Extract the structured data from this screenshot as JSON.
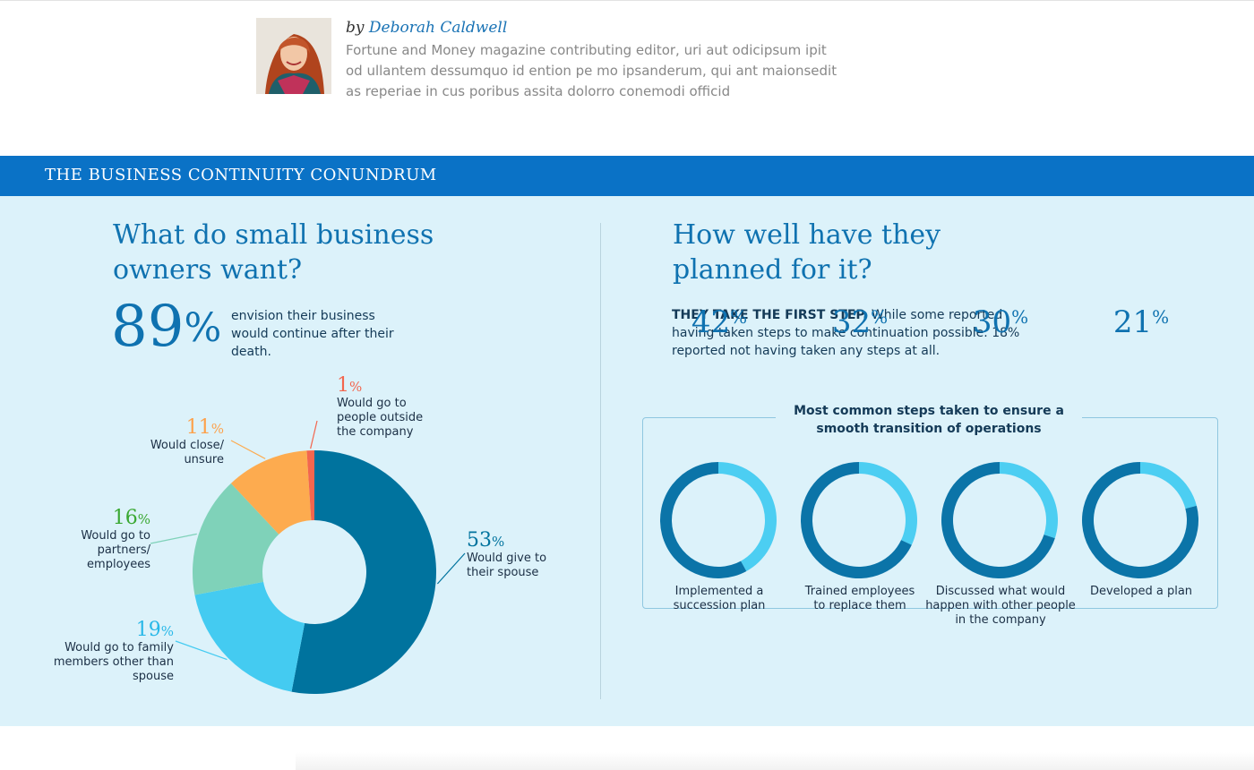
{
  "author": {
    "by": "by",
    "name": "Deborah Caldwell",
    "bio": "Fortune and Money magazine contributing editor, uri aut odicipsum ipit od ullantem dessumquo id ention pe mo ipsanderum, qui ant maionsedit as reperiae in cus poribus assita dolorro conemodi officid"
  },
  "banner": {
    "title": "THE BUSINESS CONTINUITY CONUNDRUM"
  },
  "left": {
    "heading_line1": "What do small business",
    "heading_line2": "owners want?",
    "stat_value": "89",
    "stat_unit": "%",
    "stat_desc": "envision their business would continue after their death."
  },
  "right": {
    "heading_line1": "How well have they",
    "heading_line2": "planned for it?",
    "lead_bold": "THEY TAKE THE FIRST STEP.",
    "lead_text": " While some reported having taken steps to make continuation possible. 18% reported not having taken any steps at all.",
    "steps_title": "Most common steps taken to ensure a smooth transition of operations"
  },
  "colors": {
    "banner": "#0a72c6",
    "panel": "#dcf2fa",
    "heading": "#0f72b0",
    "spouse": "#00739e",
    "family": "#44cbf1",
    "partners": "#7fd2b9",
    "close": "#fdab4f",
    "outside": "#f3664e",
    "ring_dark": "#0b74a8",
    "ring_light": "#4ccef2"
  },
  "chart_data": [
    {
      "type": "pie",
      "title": "",
      "categories": [
        "Would give to their spouse",
        "Would go to family members other than spouse",
        "Would go to partners/ employees",
        "Would close/ unsure",
        "Would go to people outside the company"
      ],
      "values": [
        53,
        19,
        16,
        11,
        1
      ],
      "display_values": [
        "53",
        "19",
        "16",
        "11",
        "1"
      ],
      "unit": "%",
      "colors": [
        "#00739e",
        "#44cbf1",
        "#7fd2b9",
        "#fdab4f",
        "#f3664e"
      ],
      "label_colors": [
        "#00739e",
        "#28b8e8",
        "#3aa832",
        "#fda14a",
        "#f3664e"
      ]
    },
    {
      "type": "pie",
      "title": "Most common steps taken to ensure a smooth transition of operations",
      "categories": [
        "Implemented a succession plan",
        "Trained employees to replace them",
        "Discussed what would happen with other people in the company",
        "Developed a plan"
      ],
      "values": [
        42,
        32,
        30,
        21
      ],
      "display_values": [
        "42",
        "32",
        "30",
        "21"
      ],
      "unit": "%"
    }
  ]
}
